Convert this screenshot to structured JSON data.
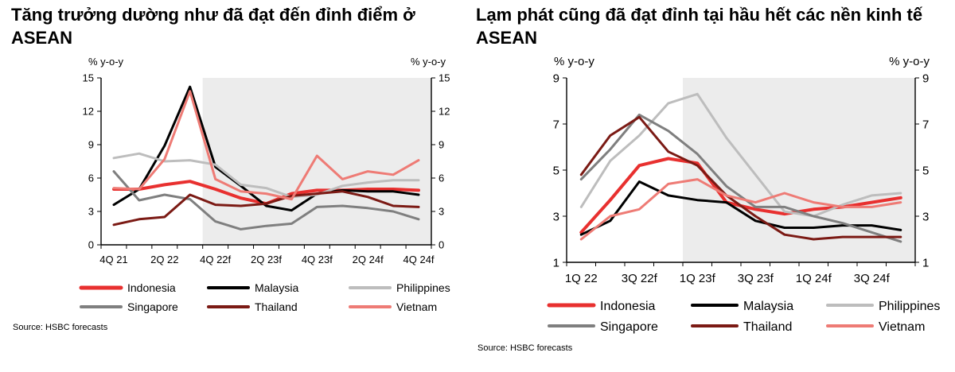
{
  "chart_data": [
    {
      "type": "line",
      "title": "Tăng trưởng dường như đã đạt đến đỉnh điểm ở ASEAN",
      "ylabel_left": "% y-o-y",
      "ylabel_right": "% y-o-y",
      "ylim": [
        0,
        15
      ],
      "yticks": [
        "0",
        "3",
        "6",
        "9",
        "12",
        "15"
      ],
      "x": [
        "4Q 21",
        "1Q 22",
        "2Q 22",
        "3Q 22",
        "4Q 22f",
        "1Q 23f",
        "2Q 23f",
        "3Q 23f",
        "4Q 23f",
        "1Q 24f",
        "2Q 24f",
        "3Q 24f",
        "4Q 24f"
      ],
      "xtick_labels": [
        "4Q 21",
        "2Q 22",
        "4Q 22f",
        "2Q 23f",
        "4Q 23f",
        "2Q 24f",
        "4Q 24f"
      ],
      "forecast_start": "4Q 22f",
      "series": [
        {
          "name": "Indonesia",
          "color": "#e8302f",
          "width": 4,
          "values": [
            5.0,
            5.0,
            5.4,
            5.7,
            5.0,
            4.2,
            3.7,
            4.6,
            4.9,
            4.9,
            5.0,
            5.0,
            4.9
          ]
        },
        {
          "name": "Malaysia",
          "color": "#000000",
          "width": 3,
          "values": [
            3.6,
            5.0,
            8.9,
            14.2,
            7.0,
            5.3,
            3.5,
            3.1,
            4.6,
            4.9,
            4.8,
            4.8,
            4.5
          ]
        },
        {
          "name": "Philippines",
          "color": "#bdbdbd",
          "width": 3,
          "values": [
            7.8,
            8.2,
            7.5,
            7.6,
            7.2,
            5.4,
            5.1,
            4.3,
            4.5,
            5.3,
            5.6,
            5.8,
            5.8
          ]
        },
        {
          "name": "Singapore",
          "color": "#7f7f7f",
          "width": 3,
          "values": [
            6.6,
            4.0,
            4.5,
            4.1,
            2.1,
            1.4,
            1.7,
            1.9,
            3.4,
            3.5,
            3.3,
            3.0,
            2.3
          ]
        },
        {
          "name": "Thailand",
          "color": "#7b1a14",
          "width": 3,
          "values": [
            1.8,
            2.3,
            2.5,
            4.5,
            3.6,
            3.5,
            3.7,
            4.4,
            4.6,
            4.8,
            4.3,
            3.5,
            3.4
          ]
        },
        {
          "name": "Vietnam",
          "color": "#ee7b75",
          "width": 3,
          "values": [
            5.1,
            5.0,
            7.7,
            13.8,
            5.9,
            4.8,
            4.6,
            4.1,
            8.0,
            5.9,
            6.6,
            6.3,
            7.6
          ]
        }
      ],
      "legend": {
        "placement": "bottom",
        "columns": 3
      },
      "source": "Source: HSBC forecasts"
    },
    {
      "type": "line",
      "title": "Lạm phát cũng đã đạt đỉnh tại hầu hết các nền kinh tế ASEAN",
      "ylabel_left": "% y-o-y",
      "ylabel_right": "% y-o-y",
      "ylim": [
        1,
        9
      ],
      "yticks": [
        "1",
        "3",
        "5",
        "7",
        "9"
      ],
      "x": [
        "1Q 22",
        "2Q 22",
        "3Q 22f",
        "4Q 22f",
        "1Q 23f",
        "2Q 23f",
        "3Q 23f",
        "4Q 23f",
        "1Q 24f",
        "2Q 24f",
        "3Q 24f",
        "4Q 24f"
      ],
      "xtick_labels": [
        "1Q 22",
        "3Q 22f",
        "1Q 23f",
        "3Q 23f",
        "1Q 24f",
        "3Q 24f"
      ],
      "forecast_start": "1Q 23f",
      "series": [
        {
          "name": "Indonesia",
          "color": "#e8302f",
          "width": 4,
          "values": [
            2.3,
            3.7,
            5.2,
            5.5,
            5.3,
            3.6,
            3.3,
            3.1,
            3.3,
            3.4,
            3.6,
            3.8
          ]
        },
        {
          "name": "Malaysia",
          "color": "#000000",
          "width": 3,
          "values": [
            2.2,
            2.8,
            4.5,
            3.9,
            3.7,
            3.6,
            2.8,
            2.5,
            2.5,
            2.6,
            2.6,
            2.4
          ]
        },
        {
          "name": "Philippines",
          "color": "#bdbdbd",
          "width": 3,
          "values": [
            3.4,
            5.4,
            6.5,
            7.9,
            8.3,
            6.4,
            4.8,
            3.2,
            3.0,
            3.5,
            3.9,
            4.0
          ]
        },
        {
          "name": "Singapore",
          "color": "#7f7f7f",
          "width": 3,
          "values": [
            4.6,
            5.9,
            7.4,
            6.7,
            5.7,
            4.3,
            3.4,
            3.4,
            3.0,
            2.7,
            2.3,
            1.9
          ]
        },
        {
          "name": "Thailand",
          "color": "#7b1a14",
          "width": 3,
          "values": [
            4.8,
            6.5,
            7.3,
            5.8,
            5.2,
            3.9,
            3.0,
            2.2,
            2.0,
            2.1,
            2.1,
            2.1
          ]
        },
        {
          "name": "Vietnam",
          "color": "#ee7b75",
          "width": 3,
          "values": [
            2.0,
            3.0,
            3.3,
            4.4,
            4.6,
            3.9,
            3.6,
            4.0,
            3.6,
            3.4,
            3.4,
            3.6
          ]
        }
      ],
      "legend": {
        "placement": "bottom",
        "columns": 3
      },
      "source": "Source: HSBC forecasts"
    }
  ]
}
